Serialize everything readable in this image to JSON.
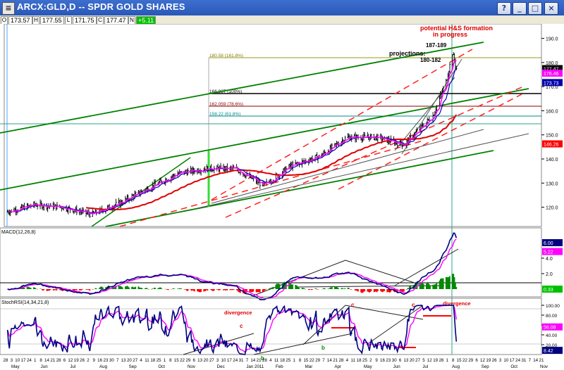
{
  "window": {
    "title": "ARCX:GLD,D -- SPDR GOLD SHARES",
    "buttons": [
      "?",
      "_",
      "□",
      "×"
    ]
  },
  "quote": [
    {
      "key": "O",
      "value": "173.57"
    },
    {
      "key": "H",
      "value": "177.55"
    },
    {
      "key": "L",
      "value": "171.75"
    },
    {
      "key": "C",
      "value": "177.47"
    },
    {
      "key": "N",
      "value": "+5.11"
    }
  ],
  "colors": {
    "price": "#000000",
    "ma_fast": "#ff00ff",
    "ma_slow": "#0000aa",
    "ma_long": "#dd0000",
    "trend_green": "#007700",
    "channel_red": "#ff2020",
    "fib": "#808000",
    "macd_line": "#000080",
    "signal": "#ff00ff",
    "hist_up": "#008800",
    "hist_down": "#ff0000"
  },
  "chart_data": [
    {
      "type": "line",
      "title": "",
      "ylim": [
        112,
        196
      ],
      "yticks": [
        120,
        130,
        140,
        150,
        160,
        170,
        180,
        190
      ],
      "price_flags": [
        {
          "text": "177.47",
          "bg": "#000000"
        },
        {
          "text": "176.46",
          "bg": "#ff00ff"
        },
        {
          "text": "173.73",
          "bg": "#0000aa"
        },
        {
          "text": "146.26",
          "bg": "#ff0000"
        }
      ],
      "x": [
        "2010-05-01",
        "2010-06-01",
        "2010-07-01",
        "2010-08-01",
        "2010-09-01",
        "2010-10-01",
        "2010-11-01",
        "2010-12-01",
        "2011-01-01",
        "2011-02-01",
        "2011-03-01",
        "2011-04-01",
        "2011-05-01",
        "2011-06-01",
        "2011-07-01",
        "2011-08-01",
        "2011-08-15",
        "2011-08-22",
        "2011-08-26"
      ],
      "series": [
        {
          "values": [
            118,
            121,
            120,
            117,
            122,
            128,
            134,
            136,
            136,
            129,
            137,
            141,
            149,
            149,
            146,
            158,
            172,
            184,
            177.5
          ]
        }
      ],
      "fib_levels": [
        {
          "label": "180.58 (161.8%)",
          "value": 180.58,
          "color": "#808000"
        },
        {
          "label": "166.937 (100%)",
          "value": 166.94,
          "color": "#000000"
        },
        {
          "label": "162.059 (78.6%)",
          "value": 162.06,
          "color": "#8b0000"
        },
        {
          "label": "158.22 (61.8%)",
          "value": 158.22,
          "color": "#008b8b"
        }
      ],
      "annotations": [
        {
          "text": "potential H&S formation",
          "color": "#dd0000"
        },
        {
          "text": "in progress",
          "color": "#dd0000"
        },
        {
          "text": "187-189",
          "color": "#000000"
        },
        {
          "text": "projections:",
          "color": "#000000"
        },
        {
          "text": "180-182",
          "color": "#000000"
        }
      ]
    },
    {
      "type": "line",
      "title": "MACD(12,26,8)",
      "ylim": [
        -1,
        7
      ],
      "yticks": [
        2.0,
        4.0
      ],
      "price_flags": [
        {
          "text": "6.00",
          "bg": "#000080"
        },
        {
          "text": "5.22",
          "bg": "#ff00ff"
        },
        {
          "text": "0.33",
          "bg": "#00c000"
        }
      ]
    },
    {
      "type": "line",
      "title": "StochRSI(14,34,21,8)",
      "ylim": [
        0,
        100
      ],
      "yticks": [
        20.0,
        40.0,
        60.0,
        80.0,
        100.0
      ],
      "price_flags": [
        {
          "text": "56.08",
          "bg": "#ff00ff"
        },
        {
          "text": "8.42",
          "bg": "#000080"
        }
      ],
      "annotations": [
        {
          "text": "divergence",
          "color": "#dd0000"
        },
        {
          "text": "divergence",
          "color": "#dd0000"
        },
        {
          "text": "b",
          "color": "#008800"
        },
        {
          "text": "b",
          "color": "#008800"
        },
        {
          "text": "c",
          "color": "#dd0000"
        },
        {
          "text": "c",
          "color": "#dd0000"
        },
        {
          "text": "c",
          "color": "#dd0000"
        }
      ]
    }
  ],
  "xaxis": {
    "day_ticks": [
      "28",
      "3",
      "10",
      "17",
      "24",
      "1",
      "8",
      "14",
      "21",
      "28",
      "6",
      "12",
      "19",
      "26",
      "2",
      "9",
      "16",
      "23",
      "30",
      "7",
      "13",
      "20",
      "27",
      "4",
      "11",
      "18",
      "25",
      "1",
      "8",
      "15",
      "22",
      "29",
      "6",
      "13",
      "20",
      "27",
      "3",
      "10",
      "17",
      "24",
      "31",
      "7",
      "14",
      "21",
      "28",
      "4",
      "11",
      "18",
      "25",
      "1",
      "8",
      "15",
      "22",
      "29",
      "7",
      "14",
      "21",
      "28",
      "4",
      "11",
      "18",
      "25",
      "2",
      "9",
      "16",
      "23",
      "30",
      "6",
      "13",
      "20",
      "27",
      "5",
      "12",
      "19",
      "26",
      "1",
      "8",
      "15",
      "22",
      "29",
      "6",
      "12",
      "19",
      "26",
      "3",
      "10",
      "17",
      "24",
      "31",
      "7",
      "14",
      "21"
    ],
    "months": [
      "May",
      "Jun",
      "Jul",
      "Aug",
      "Sep",
      "Oct",
      "Nov",
      "Dec",
      "Jan 2011",
      "Feb",
      "Mar",
      "Apr",
      "May",
      "Jun",
      "Jul",
      "Aug",
      "Sep",
      "Oct",
      "Nov"
    ]
  }
}
